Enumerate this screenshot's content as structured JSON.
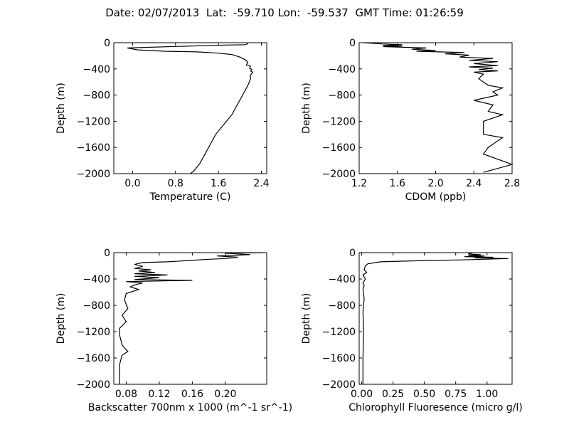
{
  "figure": {
    "suptitle": "Date: 02/07/2013  Lat:  -59.710 Lon:  -59.537  GMT Time: 01:26:59"
  },
  "chart_data": [
    {
      "type": "line",
      "xlabel": "Temperature (C)",
      "ylabel": "Depth (m)",
      "xlim": [
        -0.35,
        2.5
      ],
      "ylim": [
        -2000,
        0
      ],
      "xticks": [
        0.0,
        0.8,
        1.6,
        2.4
      ],
      "xtick_labels": [
        "0.0",
        "0.8",
        "1.6",
        "2.4"
      ],
      "yticks": [
        0,
        -400,
        -800,
        -1200,
        -1600,
        -2000
      ],
      "ytick_labels": [
        "0",
        "−400",
        "−800",
        "−1200",
        "−1600",
        "−2000"
      ],
      "grid": false,
      "x": [
        2.15,
        2.14,
        2.1,
        1.5,
        -0.1,
        0.1,
        0.6,
        1.2,
        1.6,
        1.85,
        2.0,
        2.1,
        2.15,
        2.12,
        2.2,
        2.18,
        2.22,
        2.2,
        2.24,
        2.19,
        2.2,
        2.15,
        2.05,
        1.95,
        1.85,
        1.7,
        1.55,
        1.45,
        1.35,
        1.25,
        1.15,
        1.08
      ],
      "y": [
        0,
        -20,
        -30,
        -40,
        -80,
        -110,
        -130,
        -140,
        -160,
        -180,
        -220,
        -260,
        -300,
        -340,
        -360,
        -390,
        -410,
        -430,
        -450,
        -500,
        -550,
        -650,
        -800,
        -950,
        -1100,
        -1250,
        -1400,
        -1550,
        -1700,
        -1850,
        -1950,
        -2000
      ]
    },
    {
      "type": "line",
      "xlabel": "CDOM (ppb)",
      "ylabel": "Depth (m)",
      "xlim": [
        1.2,
        2.8
      ],
      "ylim": [
        -2000,
        0
      ],
      "xticks": [
        1.2,
        1.6,
        2.0,
        2.4,
        2.8
      ],
      "xtick_labels": [
        "1.2",
        "1.6",
        "2.0",
        "2.4",
        "2.8"
      ],
      "yticks": [
        0,
        -400,
        -800,
        -1200,
        -1600,
        -2000
      ],
      "ytick_labels": [
        "0",
        "−400",
        "−800",
        "−1200",
        "−1600",
        "−2000"
      ],
      "grid": false,
      "x": [
        1.25,
        1.45,
        1.65,
        1.45,
        1.65,
        1.45,
        1.9,
        1.75,
        2.0,
        1.8,
        2.3,
        2.1,
        2.35,
        2.25,
        2.6,
        2.35,
        2.65,
        2.4,
        2.65,
        2.35,
        2.6,
        2.45,
        2.65,
        2.4,
        2.5,
        2.45,
        2.5,
        2.55,
        2.7,
        2.6,
        2.65,
        2.4,
        2.6,
        2.55,
        2.7,
        2.5,
        2.5,
        2.7,
        2.55,
        2.5,
        2.8,
        2.5
      ],
      "y": [
        0,
        -20,
        -30,
        -40,
        -50,
        -60,
        -80,
        -100,
        -120,
        -130,
        -150,
        -170,
        -190,
        -220,
        -240,
        -270,
        -290,
        -320,
        -350,
        -370,
        -390,
        -410,
        -430,
        -450,
        -480,
        -550,
        -600,
        -650,
        -690,
        -750,
        -800,
        -880,
        -950,
        -1050,
        -1100,
        -1200,
        -1400,
        -1450,
        -1600,
        -1700,
        -1860,
        -1980
      ]
    },
    {
      "type": "line",
      "xlabel": "Backscatter 700nm x 1000 (m^-1 sr^-1)",
      "ylabel": "Depth (m)",
      "xlim": [
        0.065,
        0.25
      ],
      "ylim": [
        -2000,
        0
      ],
      "xticks": [
        0.08,
        0.12,
        0.16,
        0.2
      ],
      "xtick_labels": [
        "0.08",
        "0.12",
        "0.16",
        "0.20"
      ],
      "yticks": [
        0,
        -400,
        -800,
        -1200,
        -1600,
        -2000
      ],
      "ytick_labels": [
        "0",
        "−400",
        "−800",
        "−1200",
        "−1600",
        "−2000"
      ],
      "grid": false,
      "x": [
        0.245,
        0.2,
        0.23,
        0.19,
        0.215,
        0.2,
        0.18,
        0.155,
        0.13,
        0.1,
        0.09,
        0.1,
        0.09,
        0.11,
        0.095,
        0.115,
        0.09,
        0.13,
        0.09,
        0.12,
        0.09,
        0.16,
        0.08,
        0.1,
        0.09,
        0.085,
        0.095,
        0.08,
        0.078,
        0.082,
        0.075,
        0.08,
        0.072,
        0.072,
        0.075,
        0.078,
        0.082,
        0.075,
        0.072,
        0.072
      ],
      "y": [
        0,
        -10,
        -30,
        -50,
        -70,
        -90,
        -100,
        -120,
        -140,
        -150,
        -180,
        -210,
        -240,
        -260,
        -280,
        -300,
        -320,
        -340,
        -360,
        -380,
        -410,
        -420,
        -440,
        -460,
        -490,
        -520,
        -560,
        -620,
        -720,
        -850,
        -950,
        -1050,
        -1150,
        -1250,
        -1400,
        -1450,
        -1500,
        -1560,
        -1700,
        -2000
      ]
    },
    {
      "type": "line",
      "xlabel": "Chlorophyll Fluoresence (micro g/l)",
      "ylabel": "Depth (m)",
      "xlim": [
        -0.02,
        1.2
      ],
      "ylim": [
        -2000,
        0
      ],
      "xticks": [
        0.0,
        0.25,
        0.5,
        0.75,
        1.0
      ],
      "xtick_labels": [
        "0.00",
        "0.25",
        "0.50",
        "0.75",
        "1.00"
      ],
      "yticks": [
        0,
        -400,
        -800,
        -1200,
        -1600,
        -2000
      ],
      "ytick_labels": [
        "0",
        "−400",
        "−800",
        "−1200",
        "−1600",
        "−2000"
      ],
      "grid": false,
      "x": [
        0.88,
        0.85,
        0.95,
        0.85,
        0.98,
        0.82,
        1.05,
        0.9,
        1.17,
        0.8,
        0.5,
        0.15,
        0.05,
        0.03,
        0.02,
        0.04,
        0.01,
        0.03,
        0.01,
        0.02,
        0.01,
        0.02,
        0.01,
        0.015,
        0.01,
        0.01
      ],
      "y": [
        0,
        -20,
        -30,
        -40,
        -50,
        -60,
        -70,
        -80,
        -90,
        -110,
        -120,
        -140,
        -170,
        -200,
        -260,
        -300,
        -340,
        -400,
        -460,
        -500,
        -560,
        -700,
        -900,
        -1200,
        -1600,
        -2000
      ]
    }
  ]
}
